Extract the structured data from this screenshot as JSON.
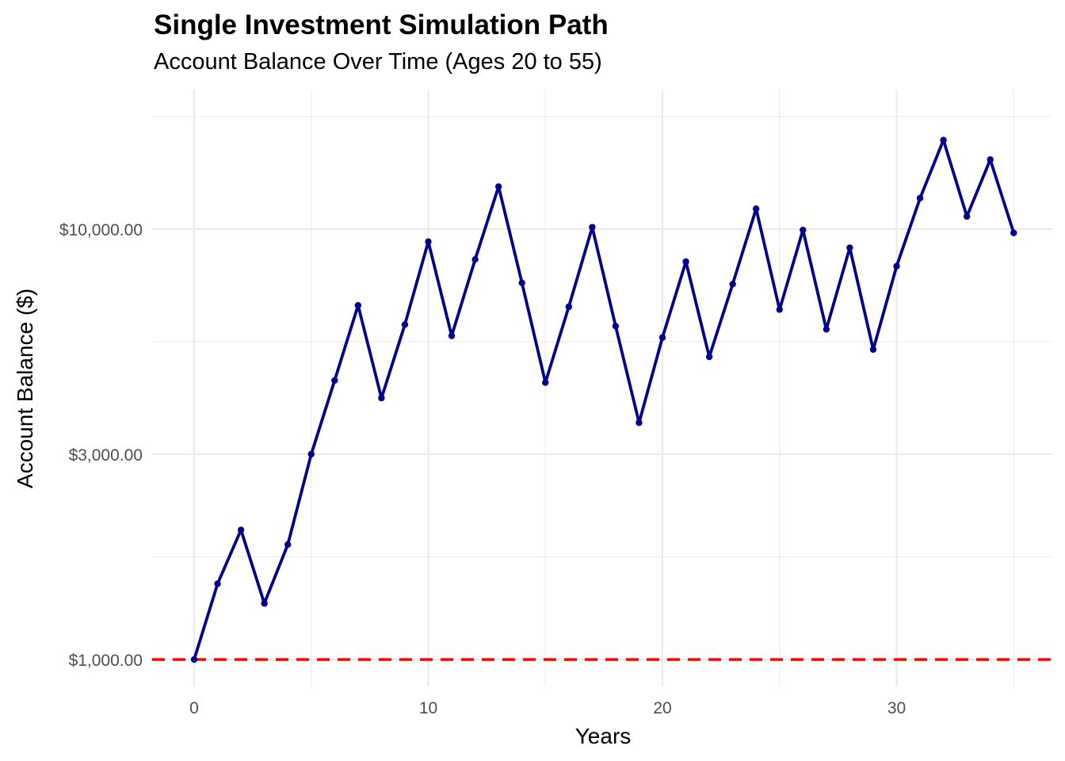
{
  "chart_data": {
    "type": "line",
    "title": "Single Investment Simulation Path",
    "subtitle": "Account Balance Over Time (Ages 20 to 55)",
    "xlabel": "Years",
    "ylabel": "Account Balance ($)",
    "y_scale": "log",
    "xlim": [
      -1.75,
      36.75
    ],
    "ylim": [
      850,
      15000
    ],
    "x_ticks": [
      0,
      10,
      20,
      30
    ],
    "x_tick_labels": [
      "0",
      "10",
      "20",
      "30"
    ],
    "y_ticks": [
      1000,
      3000,
      10000
    ],
    "y_tick_labels": [
      "$1,000.00",
      "$3,000.00",
      "$10,000.00"
    ],
    "grid": true,
    "legend": "none",
    "colors": {
      "line": "#00008B",
      "point": "#00008B",
      "reference_line": "#FF0000",
      "grid": "#EBEBEB"
    },
    "reference_line": {
      "y": 1000,
      "style": "dashed"
    },
    "series": [
      {
        "x": [
          0,
          1,
          2,
          3,
          4,
          5,
          6,
          7,
          8,
          9,
          10,
          11,
          12,
          13,
          14,
          15,
          16,
          17,
          18,
          19,
          20,
          21,
          22,
          23,
          24,
          25,
          26,
          27,
          28,
          29,
          30,
          31,
          32,
          33,
          34,
          35
        ],
        "values": [
          1000,
          1500,
          2000,
          1350,
          1850,
          3000,
          4450,
          6650,
          4050,
          6000,
          9350,
          5650,
          8500,
          12550,
          7500,
          4400,
          6600,
          10100,
          5950,
          3550,
          5600,
          8400,
          5050,
          7450,
          11150,
          6500,
          9950,
          5850,
          9050,
          5250,
          8200,
          11800,
          16100,
          10700,
          14500,
          9800
        ]
      }
    ]
  }
}
